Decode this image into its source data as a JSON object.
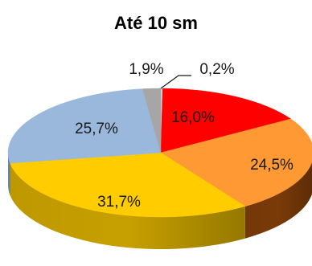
{
  "chart_data": {
    "type": "pie",
    "title": "Até  10 sm",
    "three_d": true,
    "start_angle_deg": 90,
    "direction": "clockwise",
    "slices": [
      {
        "label": "0,2%",
        "value": 0.2,
        "color": "#d9d9d9",
        "side_color": "#9e9e9e"
      },
      {
        "label": "16,0%",
        "value": 16.0,
        "color": "#ff0000",
        "side_color": "#a80000"
      },
      {
        "label": "24,5%",
        "value": 24.5,
        "color": "#ff9933",
        "side_color": "#7a3a08"
      },
      {
        "label": "31,7%",
        "value": 31.7,
        "color": "#ffcc00",
        "side_color": "#c7a000"
      },
      {
        "label": "25,7%",
        "value": 25.7,
        "color": "#9ab8dc",
        "side_color": "#6d88aa"
      },
      {
        "label": "1,9%",
        "value": 1.9,
        "color": "#a6a6a6",
        "side_color": "#7a7a7a"
      }
    ]
  }
}
